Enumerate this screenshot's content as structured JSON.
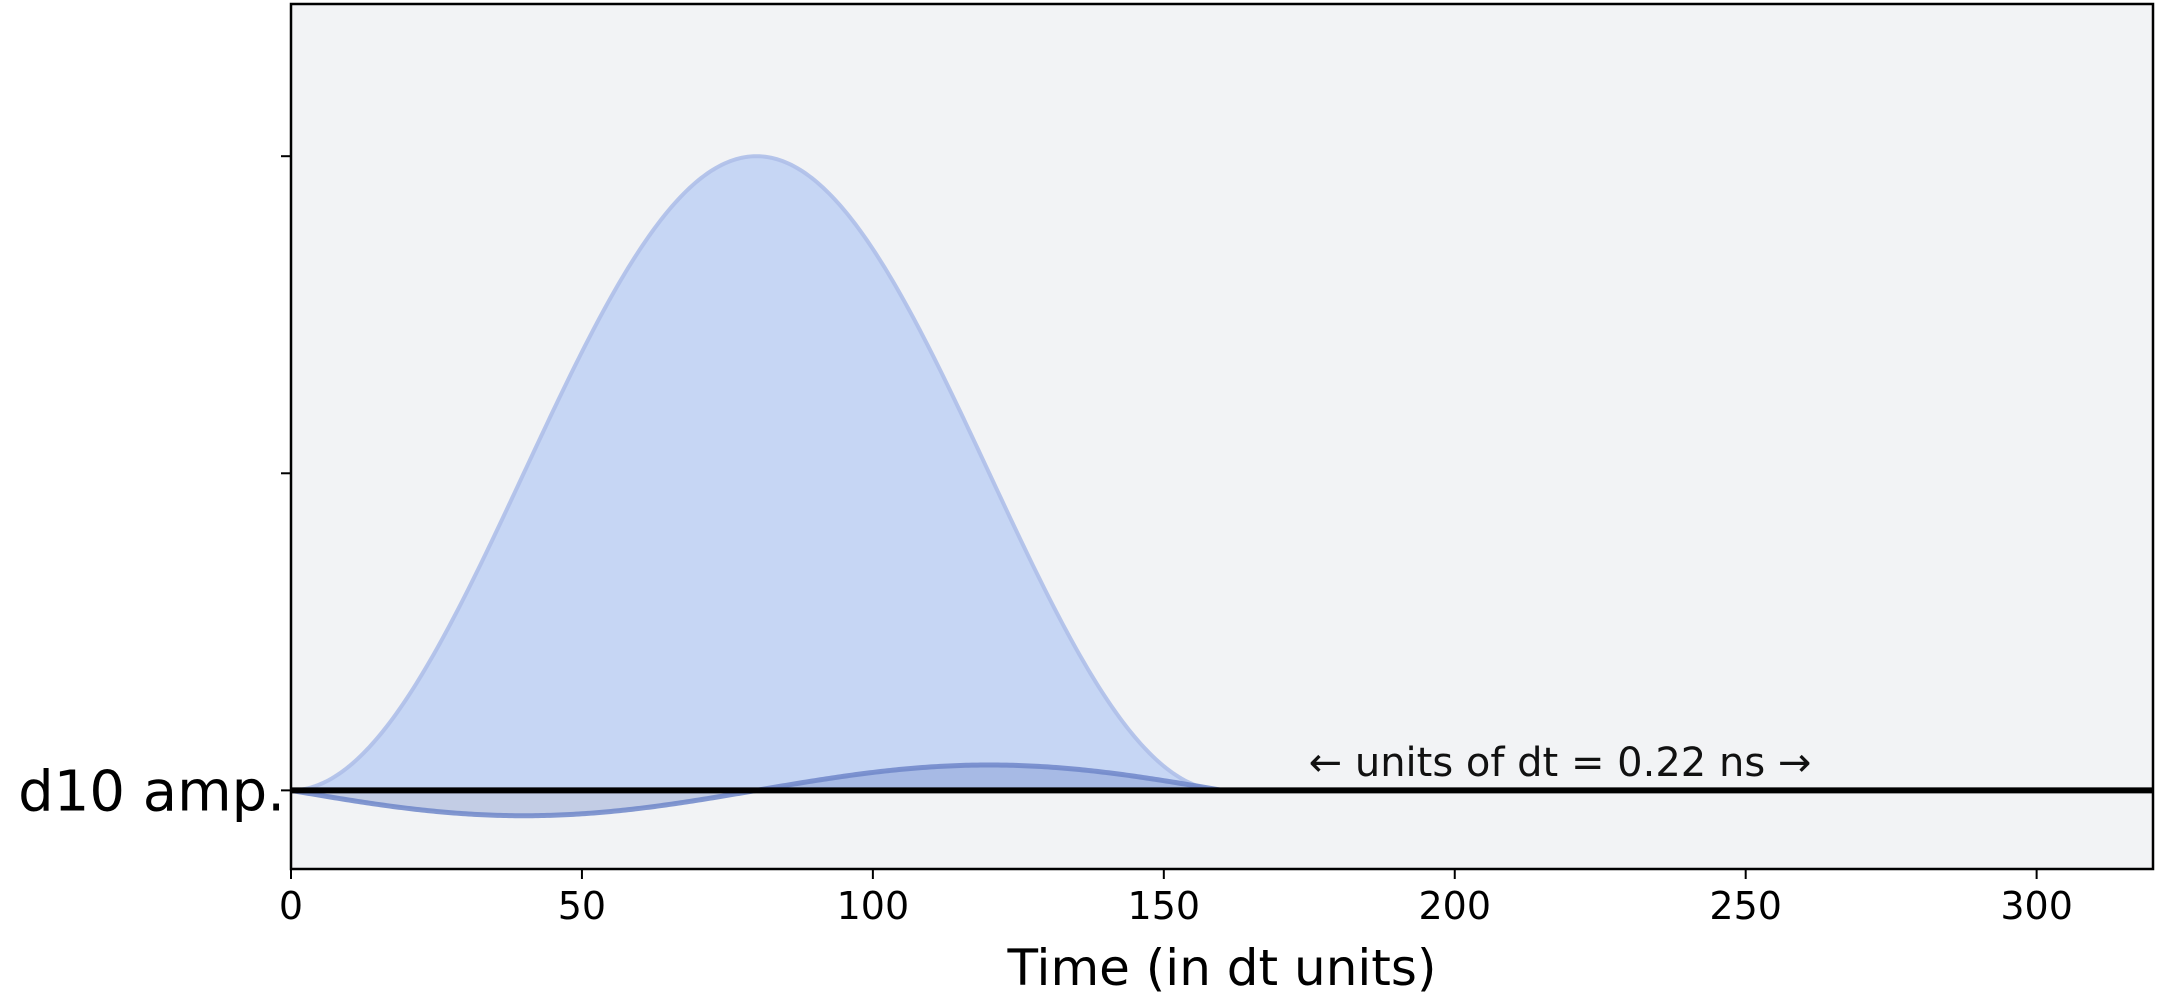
{
  "chart_data": {
    "type": "area",
    "title": "",
    "xlabel": "Time (in dt units)",
    "ylabel": "",
    "xlim": [
      0,
      320
    ],
    "ylim": [
      -0.124,
      1.24
    ],
    "x_ticks": [
      0,
      50,
      100,
      150,
      200,
      250,
      300
    ],
    "y_ticks": [
      0,
      0.5,
      1.0
    ],
    "show_y_tick_labels": false,
    "channel_label": "d10 amp.",
    "annotation": "← units of dt = 0.22 ns →",
    "background_color": "#f2f3f5",
    "pulse": {
      "duration": 160,
      "peak_time": 80,
      "real_peak": 1.0,
      "imag_amplitude": 0.04,
      "real_fill_color": "#c6d6f4",
      "real_line_color": "#aebfe9",
      "imag_line_color": "#6e86c9"
    },
    "series": [
      {
        "component": "real",
        "x": [
          0,
          10,
          20,
          30,
          40,
          50,
          60,
          70,
          80,
          90,
          100,
          110,
          120,
          130,
          140,
          150,
          160
        ],
        "y": [
          0.0,
          0.04,
          0.15,
          0.31,
          0.5,
          0.69,
          0.85,
          0.96,
          1.0,
          0.96,
          0.85,
          0.69,
          0.5,
          0.31,
          0.15,
          0.04,
          0.0
        ]
      },
      {
        "component": "imaginary",
        "x": [
          0,
          20,
          40,
          60,
          80,
          100,
          120,
          140,
          160
        ],
        "y": [
          0.0,
          -0.028,
          -0.04,
          -0.028,
          0.0,
          0.028,
          0.04,
          0.028,
          0.0
        ]
      }
    ]
  }
}
